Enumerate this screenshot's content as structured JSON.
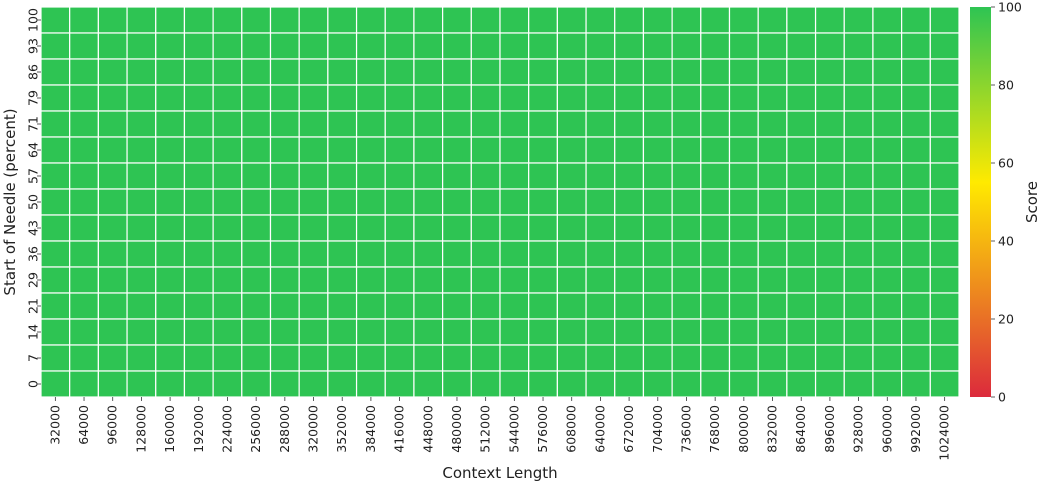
{
  "chart_data": {
    "type": "heatmap",
    "xlabel": "Context Length",
    "ylabel": "Start of Needle (percent)",
    "x_categories": [
      "32000",
      "64000",
      "96000",
      "128000",
      "160000",
      "192000",
      "224000",
      "256000",
      "288000",
      "320000",
      "352000",
      "384000",
      "416000",
      "448000",
      "480000",
      "512000",
      "544000",
      "576000",
      "608000",
      "640000",
      "672000",
      "704000",
      "736000",
      "768000",
      "800000",
      "832000",
      "864000",
      "896000",
      "928000",
      "960000",
      "992000",
      "1024000"
    ],
    "y_categories": [
      "100",
      "93",
      "86",
      "79",
      "71",
      "64",
      "57",
      "50",
      "43",
      "36",
      "29",
      "21",
      "14",
      "7",
      "0"
    ],
    "value_all_cells": 100,
    "vmin": 0,
    "vmax": 100,
    "colorbar": {
      "label": "Score",
      "ticks": [
        "0",
        "20",
        "40",
        "60",
        "80",
        "100"
      ],
      "colors": [
        "#dc2a3c",
        "#ffea00",
        "#2ec453"
      ]
    },
    "cell_color": "#2ec453",
    "grid_line_color": "#ffffff"
  }
}
